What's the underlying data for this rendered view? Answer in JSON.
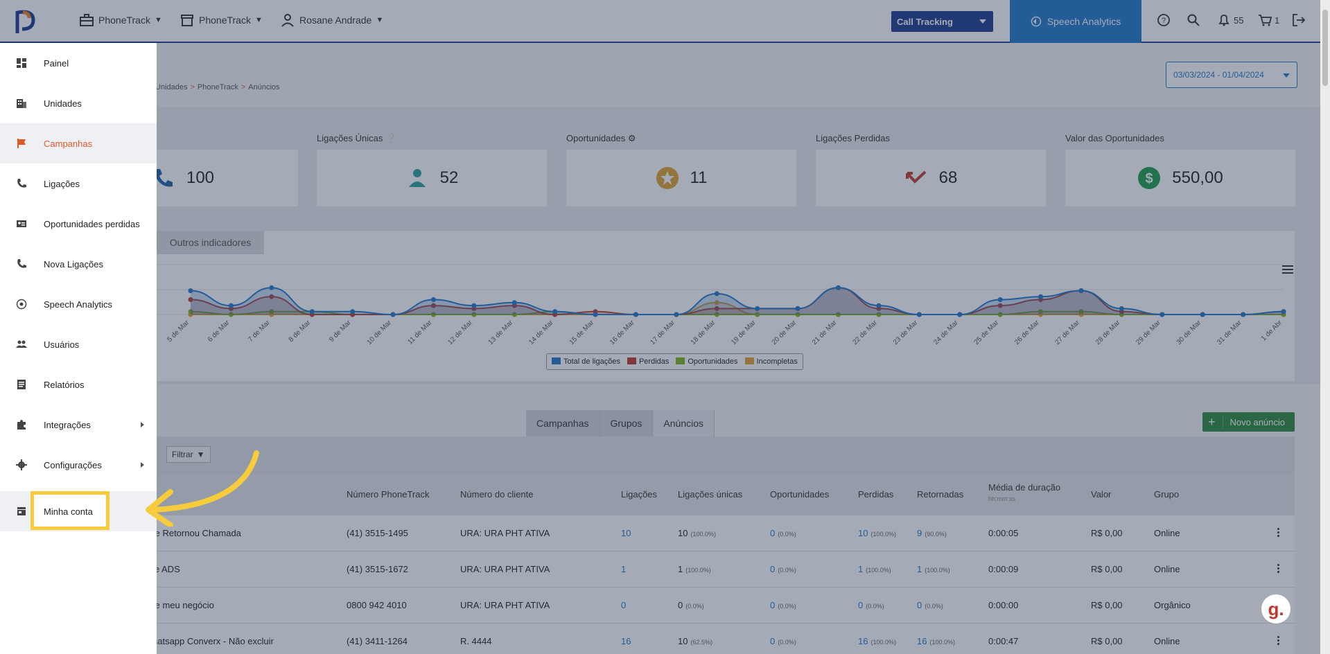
{
  "topbar": {
    "org": "PhoneTrack",
    "unit": "PhoneTrack",
    "user": "Rosane Andrade",
    "product_select": "Call Tracking",
    "speech_button": "Speech Analytics",
    "notifications_count": "55",
    "cart_count": "1"
  },
  "breadcrumb": [
    "Unidades",
    "PhoneTrack",
    "Anúncios"
  ],
  "date_range": "03/03/2024 - 01/04/2024",
  "kpis": [
    {
      "label": "",
      "value": "100"
    },
    {
      "label": "Ligações Únicas",
      "value": "52"
    },
    {
      "label": "Oportunidades",
      "value": "11"
    },
    {
      "label": "Ligações Perdidas",
      "value": "68"
    },
    {
      "label": "Valor das Oportunidades",
      "value": "550,00"
    }
  ],
  "chart_tab": "Outros indicadores",
  "chart_data": {
    "type": "area",
    "categories": [
      "5 de Mar",
      "6 de Mar",
      "7 de Mar",
      "8 de Mar",
      "9 de Mar",
      "10 de Mar",
      "11 de Mar",
      "12 de Mar",
      "13 de Mar",
      "14 de Mar",
      "15 de Mar",
      "16 de Mar",
      "17 de Mar",
      "18 de Mar",
      "19 de Mar",
      "20 de Mar",
      "21 de Mar",
      "22 de Mar",
      "23 de Mar",
      "24 de Mar",
      "25 de Mar",
      "26 de Mar",
      "27 de Mar",
      "28 de Mar",
      "29 de Mar",
      "30 de Mar",
      "31 de Mar",
      "1 de Abr"
    ],
    "series": [
      {
        "name": "Total de ligações",
        "color": "#1f77c9",
        "values": [
          8,
          3,
          9,
          1,
          1,
          0,
          5,
          3,
          4,
          1,
          0,
          0,
          0,
          7,
          2,
          2,
          9,
          3,
          0,
          0,
          5,
          6,
          8,
          2,
          0,
          0,
          0,
          1
        ]
      },
      {
        "name": "Perdidas",
        "color": "#c0392b",
        "values": [
          5,
          2,
          6,
          0,
          0,
          0,
          3,
          2,
          3,
          0,
          1,
          0,
          0,
          2,
          2,
          2,
          9,
          2,
          0,
          0,
          3,
          5,
          8,
          1,
          0,
          0,
          0,
          1
        ]
      },
      {
        "name": "Oportunidades",
        "color": "#7cb518",
        "values": [
          1,
          0,
          1,
          1,
          0,
          0,
          0,
          0,
          0,
          1,
          0,
          0,
          0,
          0,
          0,
          0,
          0,
          0,
          0,
          0,
          0,
          1,
          1,
          0,
          0,
          0,
          0,
          0
        ]
      },
      {
        "name": "Incompletas",
        "color": "#e0a030",
        "values": [
          0,
          0,
          0,
          0,
          0,
          0,
          0,
          0,
          0,
          0,
          0,
          0,
          0,
          4,
          0,
          0,
          0,
          0,
          0,
          0,
          0,
          0,
          0,
          0,
          0,
          0,
          0,
          0
        ]
      }
    ],
    "legend": "bottom-center"
  },
  "table_tabs": [
    "Campanhas",
    "Grupos",
    "Anúncios"
  ],
  "new_button": "Novo anúncio",
  "filter_button": "Filtrar",
  "table": {
    "columns": [
      "Número PhoneTrack",
      "Número do cliente",
      "Ligações",
      "Ligações únicas",
      "Oportunidades",
      "Perdidas",
      "Retornadas",
      "Média de duração",
      "Valor",
      "Grupo"
    ],
    "duration_hint": "hh:mm:ss",
    "rows": [
      {
        "name": "te Retornou Chamada",
        "phone": "(41) 3515-1495",
        "client": "URA: URA PHT ATIVA",
        "calls": "10",
        "unique": "10",
        "unique_pct": "(100.0%)",
        "opps": "0",
        "opps_pct": "(0.0%)",
        "lost": "10",
        "lost_pct": "(100.0%)",
        "returned": "9",
        "returned_pct": "(90.0%)",
        "duration": "0:00:05",
        "value": "R$ 0,00",
        "group": "Online"
      },
      {
        "name": "le ADS",
        "phone": "(41) 3515-1672",
        "client": "URA: URA PHT ATIVA",
        "calls": "1",
        "unique": "1",
        "unique_pct": "(100.0%)",
        "opps": "0",
        "opps_pct": "(0.0%)",
        "lost": "1",
        "lost_pct": "(100.0%)",
        "returned": "1",
        "returned_pct": "(100.0%)",
        "duration": "0:00:09",
        "value": "R$ 0,00",
        "group": "Online"
      },
      {
        "name": "te meu negócio",
        "phone": "0800 942 4010",
        "client": "URA: URA PHT ATIVA",
        "calls": "0",
        "unique": "0",
        "unique_pct": "(0.0%)",
        "opps": "0",
        "opps_pct": "(0.0%)",
        "lost": "0",
        "lost_pct": "(0.0%)",
        "returned": "0",
        "returned_pct": "(0.0%)",
        "duration": "0:00:00",
        "value": "R$ 0,00",
        "group": "Orgânico"
      },
      {
        "name": "hatsapp Converx - Não excluir",
        "phone": "(41) 3411-1264",
        "client": "R. 4444",
        "calls": "16",
        "unique": "10",
        "unique_pct": "(62.5%)",
        "opps": "0",
        "opps_pct": "(0.0%)",
        "lost": "16",
        "lost_pct": "(100.0%)",
        "returned": "16",
        "returned_pct": "(100.0%)",
        "duration": "0:00:47",
        "value": "R$ 0,00",
        "group": "Online"
      }
    ]
  },
  "sidebar": {
    "items": [
      {
        "label": "Painel",
        "icon": "dashboard-icon"
      },
      {
        "label": "Unidades",
        "icon": "building-icon"
      },
      {
        "label": "Campanhas",
        "icon": "flag-icon"
      },
      {
        "label": "Ligações",
        "icon": "phone-icon"
      },
      {
        "label": "Oportunidades perdidas",
        "icon": "contact-card-icon"
      },
      {
        "label": "Nova Ligações",
        "icon": "phone-icon"
      },
      {
        "label": "Speech Analytics",
        "icon": "speech-icon"
      },
      {
        "label": "Usuários",
        "icon": "users-icon"
      },
      {
        "label": "Relatórios",
        "icon": "report-icon"
      },
      {
        "label": "Integrações",
        "icon": "puzzle-icon"
      },
      {
        "label": "Configurações",
        "icon": "gear-icon"
      },
      {
        "label": "Minha conta",
        "icon": "store-icon"
      }
    ]
  },
  "colors": {
    "accent": "#1a3c8e",
    "speech": "#1f77c9",
    "active": "#e05a28",
    "highlight": "#f6cc3c"
  }
}
